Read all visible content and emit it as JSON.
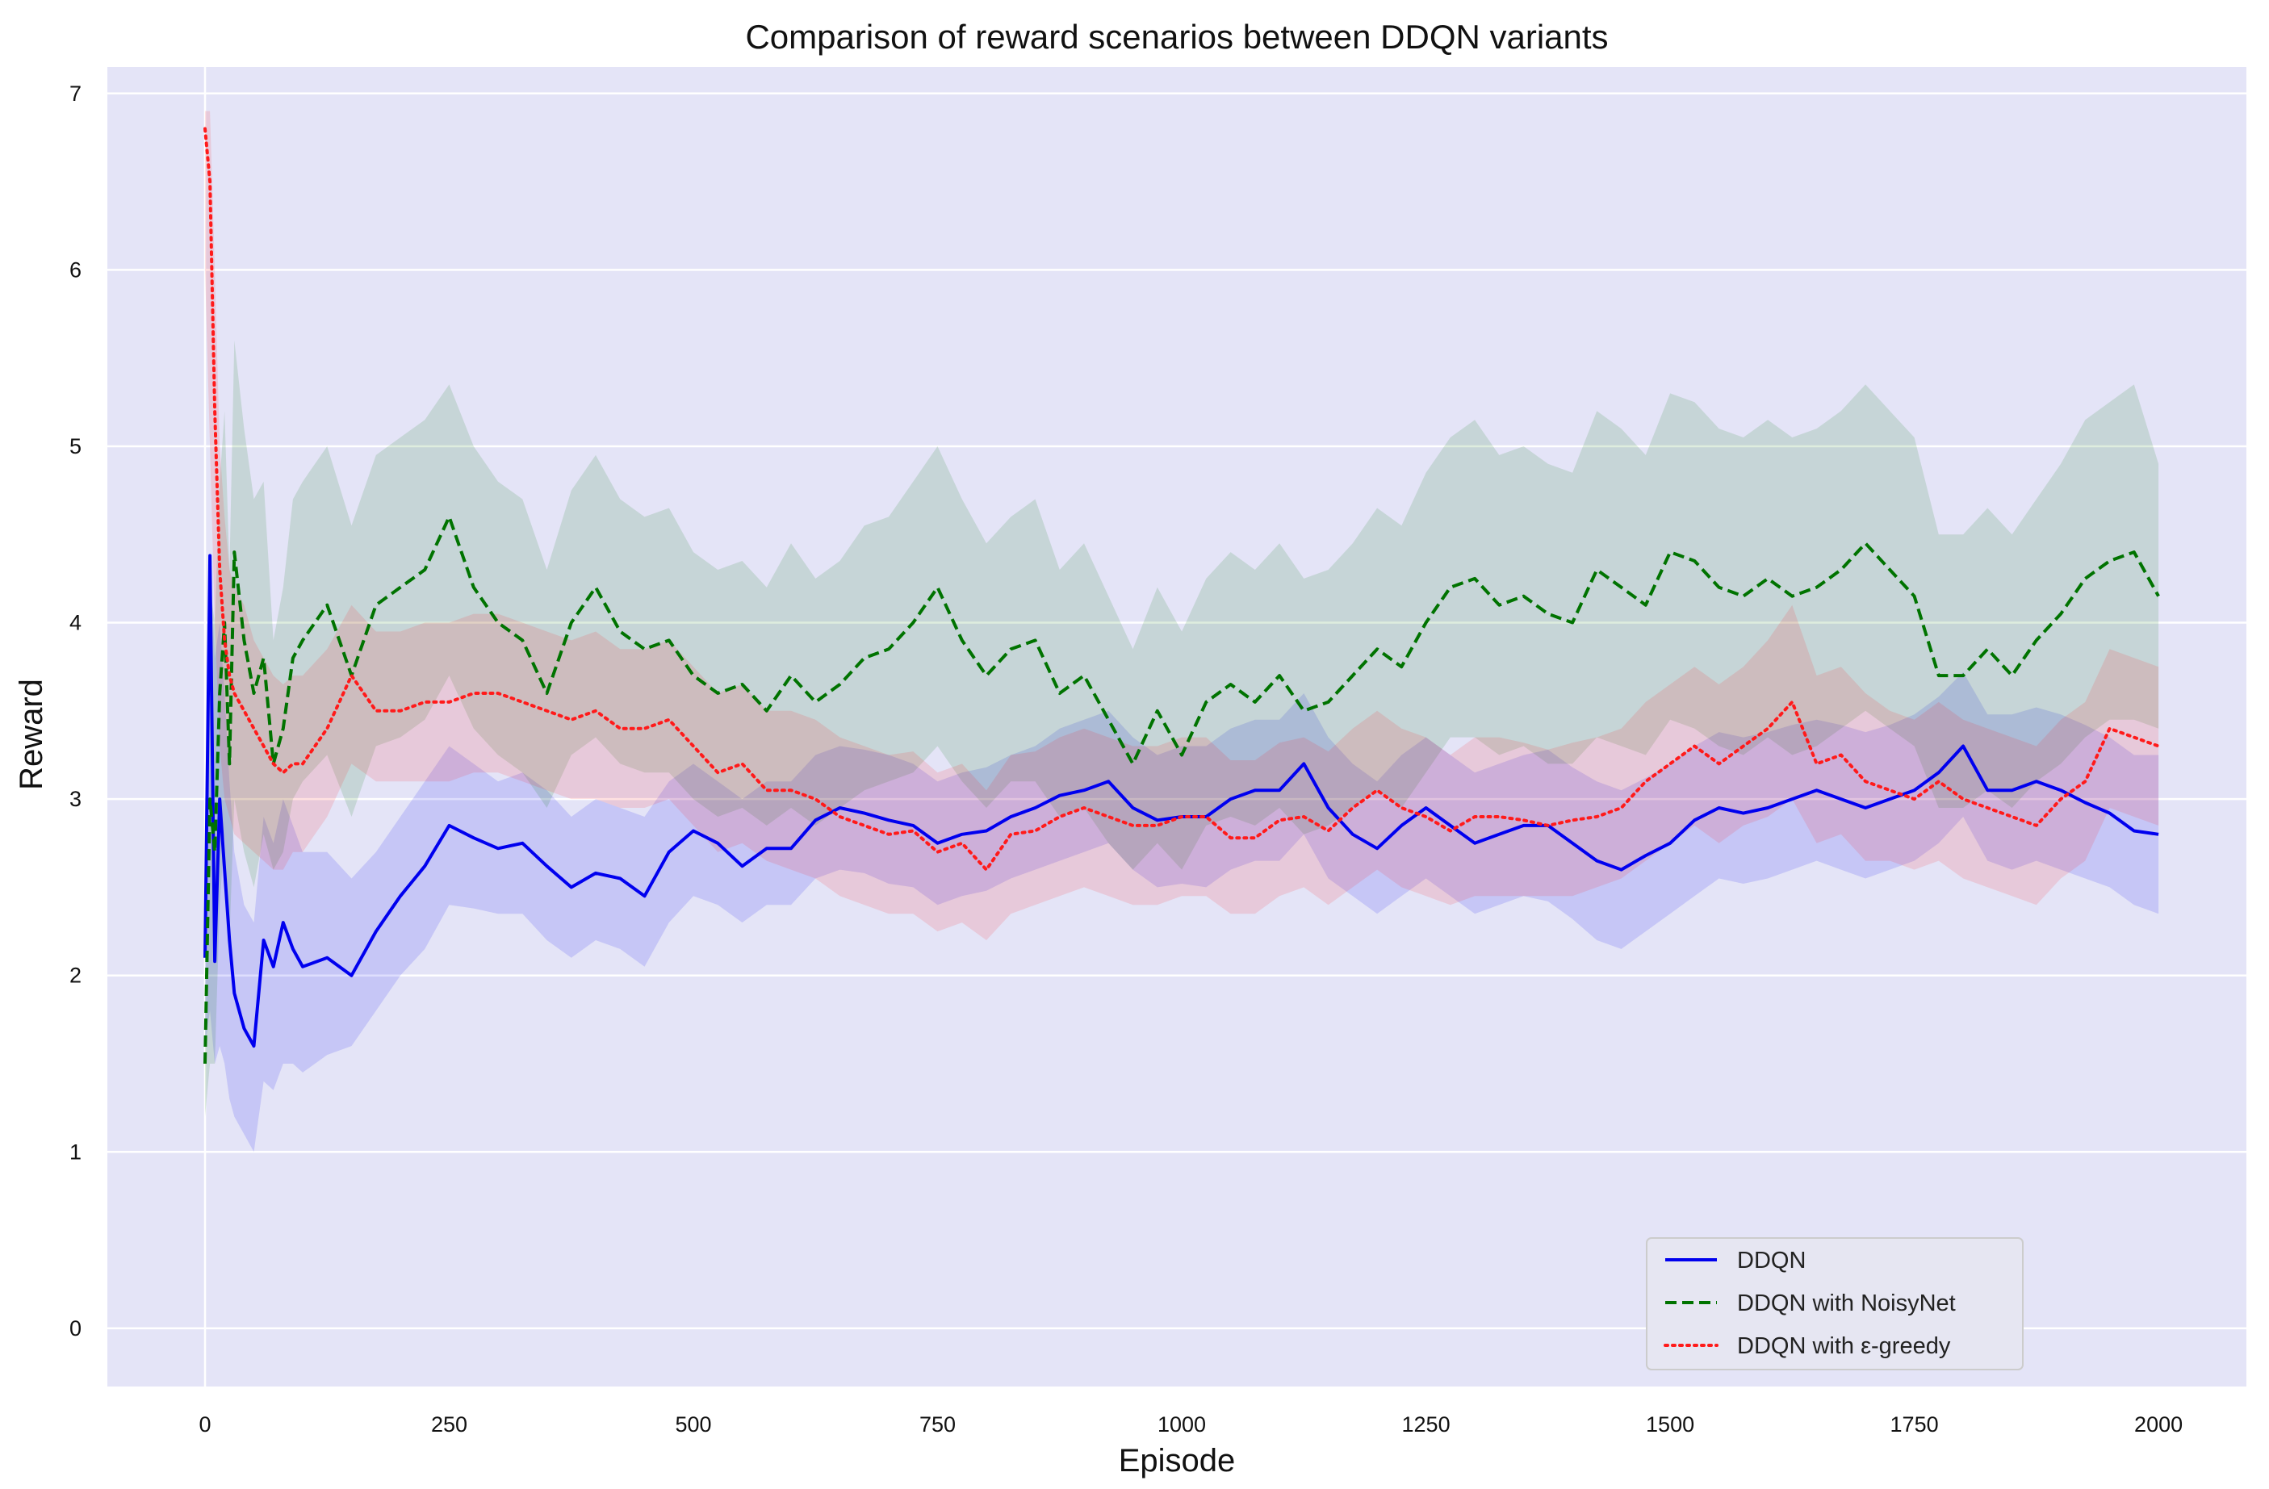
{
  "chart_data": {
    "type": "line",
    "title": "Comparison of reward scenarios between DDQN variants",
    "xlabel": "Episode",
    "ylabel": "Reward",
    "xlim": [
      -100,
      2090
    ],
    "ylim": [
      -0.33,
      7.15
    ],
    "xticks": [
      0,
      250,
      500,
      750,
      1000,
      1250,
      1500,
      1750,
      2000
    ],
    "yticks": [
      0,
      1,
      2,
      3,
      4,
      5,
      6,
      7
    ],
    "grid": true,
    "legend_position": "lower-right",
    "colors": {
      "background": "#e4e4f7",
      "grid": "#ffffff",
      "DDQN": "#0000ee",
      "DDQN with NoisyNet": "#007300",
      "DDQN with ε-greedy": "#ff1a1a"
    },
    "x": [
      0,
      5,
      10,
      15,
      20,
      25,
      30,
      40,
      50,
      60,
      70,
      80,
      90,
      100,
      125,
      150,
      175,
      200,
      225,
      250,
      275,
      300,
      325,
      350,
      375,
      400,
      425,
      450,
      475,
      500,
      525,
      550,
      575,
      600,
      625,
      650,
      675,
      700,
      725,
      750,
      775,
      800,
      825,
      850,
      875,
      900,
      925,
      950,
      975,
      1000,
      1025,
      1050,
      1075,
      1100,
      1125,
      1150,
      1175,
      1200,
      1225,
      1250,
      1275,
      1300,
      1325,
      1350,
      1375,
      1400,
      1425,
      1450,
      1475,
      1500,
      1525,
      1550,
      1575,
      1600,
      1625,
      1650,
      1675,
      1700,
      1725,
      1750,
      1775,
      1800,
      1825,
      1850,
      1875,
      1900,
      1925,
      1950,
      1975,
      2000
    ],
    "series": [
      {
        "name": "DDQN",
        "style": "solid",
        "values": [
          2.1,
          4.38,
          2.08,
          3.0,
          2.6,
          2.2,
          1.9,
          1.7,
          1.6,
          2.2,
          2.05,
          2.3,
          2.15,
          2.05,
          2.1,
          2.0,
          2.25,
          2.45,
          2.62,
          2.85,
          2.78,
          2.72,
          2.75,
          2.62,
          2.5,
          2.58,
          2.55,
          2.45,
          2.7,
          2.82,
          2.75,
          2.62,
          2.72,
          2.72,
          2.88,
          2.95,
          2.92,
          2.88,
          2.85,
          2.75,
          2.8,
          2.82,
          2.9,
          2.95,
          3.02,
          3.05,
          3.1,
          2.95,
          2.88,
          2.9,
          2.9,
          3.0,
          3.05,
          3.05,
          3.2,
          2.95,
          2.8,
          2.72,
          2.85,
          2.95,
          2.85,
          2.75,
          2.8,
          2.85,
          2.85,
          2.75,
          2.65,
          2.6,
          2.68,
          2.75,
          2.88,
          2.95,
          2.92,
          2.95,
          3.0,
          3.05,
          3.0,
          2.95,
          3.0,
          3.05,
          3.15,
          3.3,
          3.05,
          3.05,
          3.1,
          3.05,
          2.98,
          2.92,
          2.82,
          2.8
        ],
        "lower": [
          1.6,
          1.8,
          1.5,
          1.6,
          1.5,
          1.3,
          1.2,
          1.1,
          1.0,
          1.4,
          1.35,
          1.5,
          1.5,
          1.45,
          1.55,
          1.6,
          1.8,
          2.0,
          2.15,
          2.4,
          2.38,
          2.35,
          2.35,
          2.2,
          2.1,
          2.2,
          2.15,
          2.05,
          2.3,
          2.45,
          2.4,
          2.3,
          2.4,
          2.4,
          2.55,
          2.6,
          2.58,
          2.52,
          2.5,
          2.4,
          2.45,
          2.48,
          2.55,
          2.6,
          2.65,
          2.7,
          2.75,
          2.6,
          2.5,
          2.52,
          2.5,
          2.6,
          2.65,
          2.65,
          2.8,
          2.55,
          2.45,
          2.35,
          2.45,
          2.55,
          2.45,
          2.35,
          2.4,
          2.45,
          2.42,
          2.32,
          2.2,
          2.15,
          2.25,
          2.35,
          2.45,
          2.55,
          2.52,
          2.55,
          2.6,
          2.65,
          2.6,
          2.55,
          2.6,
          2.65,
          2.75,
          2.9,
          2.65,
          2.6,
          2.65,
          2.6,
          2.55,
          2.5,
          2.4,
          2.35
        ],
        "upper": [
          2.6,
          4.4,
          3.8,
          4.0,
          3.6,
          3.1,
          2.7,
          2.4,
          2.3,
          2.9,
          2.75,
          3.0,
          2.85,
          2.7,
          2.7,
          2.55,
          2.7,
          2.9,
          3.1,
          3.3,
          3.2,
          3.1,
          3.15,
          3.05,
          2.9,
          3.0,
          2.95,
          2.9,
          3.1,
          3.2,
          3.1,
          3.0,
          3.1,
          3.1,
          3.25,
          3.3,
          3.28,
          3.25,
          3.2,
          3.1,
          3.15,
          3.18,
          3.25,
          3.3,
          3.4,
          3.45,
          3.5,
          3.35,
          3.25,
          3.3,
          3.3,
          3.4,
          3.45,
          3.45,
          3.6,
          3.35,
          3.2,
          3.1,
          3.25,
          3.35,
          3.25,
          3.15,
          3.2,
          3.25,
          3.28,
          3.18,
          3.1,
          3.05,
          3.12,
          3.2,
          3.3,
          3.38,
          3.35,
          3.38,
          3.42,
          3.45,
          3.42,
          3.38,
          3.42,
          3.48,
          3.58,
          3.72,
          3.48,
          3.48,
          3.52,
          3.48,
          3.42,
          3.35,
          3.25,
          3.25
        ]
      },
      {
        "name": "DDQN with NoisyNet",
        "style": "dashed",
        "values": [
          1.5,
          3.0,
          2.7,
          3.6,
          4.0,
          3.2,
          4.4,
          3.9,
          3.6,
          3.8,
          3.2,
          3.4,
          3.8,
          3.9,
          4.1,
          3.7,
          4.1,
          4.2,
          4.3,
          4.6,
          4.2,
          4.0,
          3.9,
          3.6,
          4.0,
          4.2,
          3.95,
          3.85,
          3.9,
          3.7,
          3.6,
          3.65,
          3.5,
          3.7,
          3.55,
          3.65,
          3.8,
          3.85,
          4.0,
          4.2,
          3.9,
          3.7,
          3.85,
          3.9,
          3.6,
          3.7,
          3.45,
          3.2,
          3.5,
          3.25,
          3.55,
          3.65,
          3.55,
          3.7,
          3.5,
          3.55,
          3.7,
          3.85,
          3.75,
          4.0,
          4.2,
          4.25,
          4.1,
          4.15,
          4.05,
          4.0,
          4.3,
          4.2,
          4.1,
          4.4,
          4.35,
          4.2,
          4.15,
          4.25,
          4.15,
          4.2,
          4.3,
          4.45,
          4.3,
          4.15,
          3.7,
          3.7,
          3.85,
          3.7,
          3.9,
          4.05,
          4.25,
          4.35,
          4.4,
          4.15
        ],
        "lower": [
          1.2,
          1.5,
          1.5,
          2.4,
          2.8,
          2.2,
          3.0,
          2.7,
          2.5,
          2.8,
          2.6,
          2.7,
          3.0,
          3.1,
          3.25,
          2.9,
          3.3,
          3.35,
          3.45,
          3.7,
          3.4,
          3.25,
          3.15,
          2.95,
          3.25,
          3.35,
          3.2,
          3.15,
          3.15,
          3.0,
          2.9,
          2.95,
          2.85,
          2.95,
          2.85,
          2.95,
          3.05,
          3.1,
          3.15,
          3.3,
          3.1,
          2.95,
          3.1,
          3.1,
          2.9,
          2.95,
          2.75,
          2.6,
          2.75,
          2.6,
          2.85,
          2.9,
          2.85,
          2.95,
          2.8,
          2.85,
          2.95,
          3.05,
          2.95,
          3.15,
          3.35,
          3.35,
          3.25,
          3.3,
          3.2,
          3.2,
          3.35,
          3.3,
          3.25,
          3.45,
          3.4,
          3.3,
          3.25,
          3.35,
          3.25,
          3.3,
          3.4,
          3.5,
          3.4,
          3.3,
          2.95,
          2.95,
          3.05,
          2.95,
          3.1,
          3.2,
          3.35,
          3.45,
          3.45,
          3.4
        ],
        "upper": [
          1.8,
          4.2,
          4.0,
          4.8,
          5.2,
          4.3,
          5.6,
          5.1,
          4.7,
          4.8,
          3.9,
          4.2,
          4.7,
          4.8,
          5.0,
          4.55,
          4.95,
          5.05,
          5.15,
          5.35,
          5.0,
          4.8,
          4.7,
          4.3,
          4.75,
          4.95,
          4.7,
          4.6,
          4.65,
          4.4,
          4.3,
          4.35,
          4.2,
          4.45,
          4.25,
          4.35,
          4.55,
          4.6,
          4.8,
          5.0,
          4.7,
          4.45,
          4.6,
          4.7,
          4.3,
          4.45,
          4.15,
          3.85,
          4.2,
          3.95,
          4.25,
          4.4,
          4.3,
          4.45,
          4.25,
          4.3,
          4.45,
          4.65,
          4.55,
          4.85,
          5.05,
          5.15,
          4.95,
          5.0,
          4.9,
          4.85,
          5.2,
          5.1,
          4.95,
          5.3,
          5.25,
          5.1,
          5.05,
          5.15,
          5.05,
          5.1,
          5.2,
          5.35,
          5.2,
          5.05,
          4.5,
          4.5,
          4.65,
          4.5,
          4.7,
          4.9,
          5.15,
          5.25,
          5.35,
          4.9
        ]
      },
      {
        "name": "DDQN with ε-greedy",
        "style": "dotted",
        "values": [
          6.8,
          6.5,
          5.2,
          4.3,
          3.9,
          3.7,
          3.6,
          3.5,
          3.4,
          3.3,
          3.2,
          3.15,
          3.2,
          3.2,
          3.4,
          3.7,
          3.5,
          3.5,
          3.55,
          3.55,
          3.6,
          3.6,
          3.55,
          3.5,
          3.45,
          3.5,
          3.4,
          3.4,
          3.45,
          3.3,
          3.15,
          3.2,
          3.05,
          3.05,
          3.0,
          2.9,
          2.85,
          2.8,
          2.82,
          2.7,
          2.75,
          2.6,
          2.8,
          2.82,
          2.9,
          2.95,
          2.9,
          2.85,
          2.85,
          2.9,
          2.9,
          2.78,
          2.78,
          2.88,
          2.9,
          2.82,
          2.95,
          3.05,
          2.95,
          2.9,
          2.82,
          2.9,
          2.9,
          2.88,
          2.85,
          2.88,
          2.9,
          2.95,
          3.1,
          3.2,
          3.3,
          3.2,
          3.3,
          3.4,
          3.55,
          3.2,
          3.25,
          3.1,
          3.05,
          3.0,
          3.1,
          3.0,
          2.95,
          2.9,
          2.85,
          3.0,
          3.1,
          3.4,
          3.35,
          3.3
        ],
        "lower": [
          6.0,
          5.0,
          4.0,
          3.3,
          3.0,
          2.9,
          2.8,
          2.75,
          2.7,
          2.65,
          2.6,
          2.6,
          2.7,
          2.7,
          2.9,
          3.2,
          3.1,
          3.1,
          3.1,
          3.1,
          3.15,
          3.15,
          3.1,
          3.05,
          3.0,
          3.0,
          2.95,
          2.95,
          3.0,
          2.85,
          2.7,
          2.75,
          2.65,
          2.6,
          2.55,
          2.45,
          2.4,
          2.35,
          2.35,
          2.25,
          2.3,
          2.2,
          2.35,
          2.4,
          2.45,
          2.5,
          2.45,
          2.4,
          2.4,
          2.45,
          2.45,
          2.35,
          2.35,
          2.45,
          2.5,
          2.4,
          2.5,
          2.6,
          2.5,
          2.45,
          2.4,
          2.45,
          2.45,
          2.45,
          2.45,
          2.45,
          2.5,
          2.55,
          2.65,
          2.75,
          2.85,
          2.75,
          2.85,
          2.9,
          3.0,
          2.75,
          2.8,
          2.65,
          2.65,
          2.6,
          2.65,
          2.55,
          2.5,
          2.45,
          2.4,
          2.55,
          2.65,
          2.95,
          2.9,
          2.85
        ],
        "upper": [
          6.9,
          6.9,
          6.0,
          5.0,
          4.6,
          4.3,
          4.2,
          4.1,
          3.9,
          3.8,
          3.7,
          3.65,
          3.7,
          3.7,
          3.85,
          4.1,
          3.95,
          3.95,
          4.0,
          4.0,
          4.05,
          4.05,
          4.0,
          3.95,
          3.9,
          3.95,
          3.85,
          3.85,
          3.9,
          3.75,
          3.6,
          3.65,
          3.5,
          3.5,
          3.45,
          3.35,
          3.3,
          3.25,
          3.27,
          3.15,
          3.2,
          3.05,
          3.25,
          3.27,
          3.35,
          3.4,
          3.35,
          3.3,
          3.3,
          3.35,
          3.35,
          3.22,
          3.22,
          3.32,
          3.35,
          3.27,
          3.4,
          3.5,
          3.4,
          3.35,
          3.25,
          3.35,
          3.35,
          3.32,
          3.28,
          3.32,
          3.35,
          3.4,
          3.55,
          3.65,
          3.75,
          3.65,
          3.75,
          3.9,
          4.1,
          3.7,
          3.75,
          3.6,
          3.5,
          3.45,
          3.55,
          3.45,
          3.4,
          3.35,
          3.3,
          3.45,
          3.55,
          3.85,
          3.8,
          3.75
        ]
      }
    ]
  }
}
